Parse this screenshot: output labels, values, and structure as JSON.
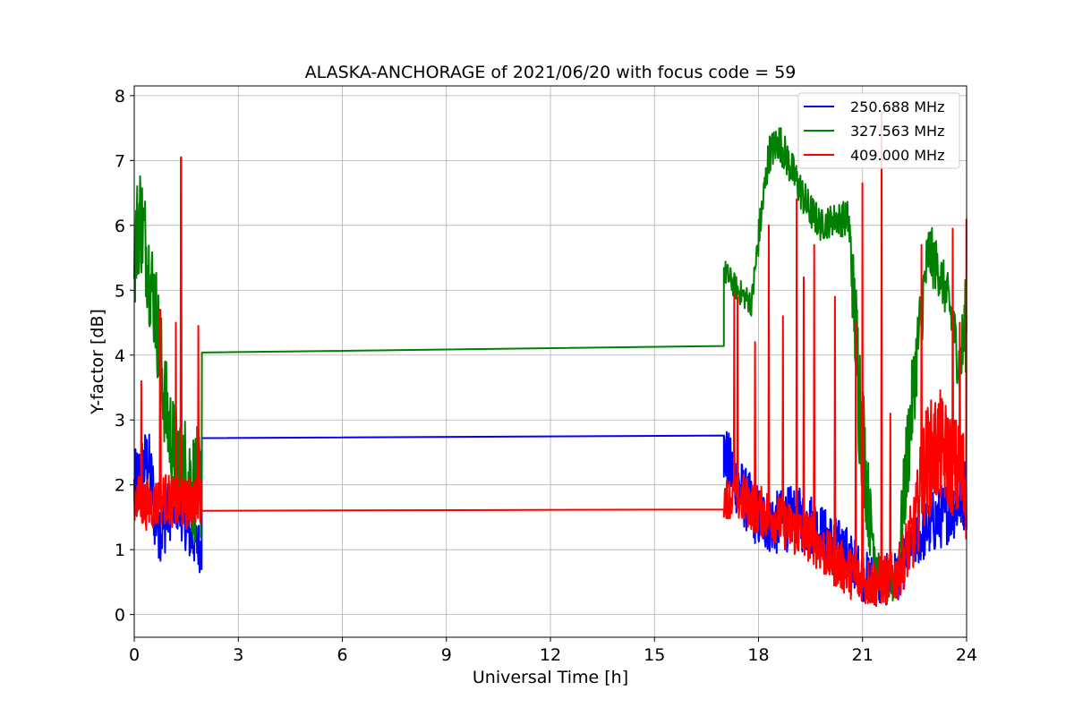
{
  "chart_data": {
    "type": "line",
    "title": "ALASKA-ANCHORAGE of 2021/06/20 with focus code = 59",
    "xlabel": "Universal Time [h]",
    "ylabel": "Y-factor [dB]",
    "xlim": [
      0,
      24
    ],
    "ylim": [
      -0.35,
      8.15
    ],
    "xticks": [
      0,
      3,
      6,
      9,
      12,
      15,
      18,
      21,
      24
    ],
    "yticks": [
      0,
      1,
      2,
      3,
      4,
      5,
      6,
      7,
      8
    ],
    "grid": true,
    "legend_position": "top-right",
    "series": [
      {
        "name": "250.688 MHz",
        "color": "#0000ff",
        "segments": [
          {
            "x": [
              0,
              0.2,
              0.4,
              0.6,
              0.8,
              1.0,
              1.2,
              1.4,
              1.6,
              1.8,
              1.95
            ],
            "center": [
              1.9,
              2.2,
              2.4,
              1.6,
              1.3,
              1.6,
              1.7,
              1.5,
              1.2,
              1.1,
              1.0
            ],
            "amp": [
              0.6,
              0.6,
              0.5,
              0.7,
              0.5,
              0.5,
              0.4,
              0.4,
              0.4,
              0.4,
              0.4
            ]
          },
          {
            "x": [
              1.95,
              17.0
            ],
            "y": [
              2.72,
              2.76
            ]
          },
          {
            "x": [
              17.0,
              17.3,
              17.6,
              18.0,
              18.5,
              19.0,
              19.5,
              20.0,
              20.5,
              21.0,
              21.5,
              22.0,
              22.5,
              23.0,
              23.5,
              24.0
            ],
            "center": [
              2.5,
              2.1,
              1.8,
              1.5,
              1.4,
              1.5,
              1.4,
              1.2,
              1.0,
              0.6,
              0.5,
              0.6,
              1.1,
              1.4,
              1.6,
              1.9
            ],
            "amp": [
              0.5,
              0.5,
              0.5,
              0.5,
              0.5,
              0.5,
              0.5,
              0.4,
              0.4,
              0.4,
              0.4,
              0.4,
              0.4,
              0.5,
              0.5,
              0.6
            ]
          }
        ]
      },
      {
        "name": "327.563 MHz",
        "color": "#008000",
        "segments": [
          {
            "x": [
              0,
              0.15,
              0.3,
              0.45,
              0.6,
              0.75,
              0.9,
              1.1,
              1.3,
              1.5,
              1.7,
              1.95
            ],
            "center": [
              5.5,
              6.2,
              5.8,
              5.2,
              4.8,
              4.0,
              3.2,
              2.6,
              2.4,
              2.2,
              2.0,
              2.0
            ],
            "amp": [
              0.9,
              0.9,
              0.8,
              0.8,
              0.8,
              0.8,
              0.8,
              0.8,
              0.8,
              0.9,
              0.9,
              0.9
            ]
          },
          {
            "x": [
              1.95,
              17.0
            ],
            "y": [
              4.04,
              4.14
            ]
          },
          {
            "x": [
              17.0,
              17.4,
              17.8,
              18.0,
              18.3,
              18.6,
              19.0,
              19.4,
              19.8,
              20.2,
              20.6,
              20.9,
              21.2,
              21.5,
              21.8,
              22.0,
              22.3,
              22.6,
              22.9,
              23.2,
              23.5,
              23.8,
              24.0
            ],
            "center": [
              5.3,
              5.0,
              4.8,
              5.8,
              7.1,
              7.3,
              6.8,
              6.3,
              6.0,
              6.1,
              6.1,
              3.5,
              1.5,
              0.6,
              0.4,
              0.6,
              2.5,
              4.2,
              5.6,
              5.3,
              4.8,
              3.8,
              4.6
            ],
            "amp": [
              0.2,
              0.2,
              0.2,
              0.3,
              0.3,
              0.3,
              0.3,
              0.3,
              0.25,
              0.25,
              0.3,
              1.2,
              0.6,
              0.3,
              0.3,
              0.4,
              0.8,
              0.6,
              0.5,
              0.4,
              0.4,
              0.5,
              0.8
            ]
          }
        ]
      },
      {
        "name": "409.000 MHz",
        "color": "#ff0000",
        "segments": [
          {
            "x": [
              0,
              0.3,
              0.6,
              0.9,
              1.2,
              1.5,
              1.8,
              1.95
            ],
            "center": [
              1.8,
              1.7,
              1.7,
              1.8,
              1.7,
              1.7,
              1.8,
              1.7
            ],
            "amp": [
              0.4,
              0.4,
              0.4,
              0.4,
              0.4,
              0.4,
              0.4,
              0.4
            ],
            "spikes": [
              {
                "x": 0.2,
                "y": 3.6
              },
              {
                "x": 0.75,
                "y": 4.7
              },
              {
                "x": 1.2,
                "y": 4.5
              },
              {
                "x": 1.35,
                "y": 7.05
              },
              {
                "x": 1.85,
                "y": 4.45
              }
            ]
          },
          {
            "x": [
              1.95,
              17.0
            ],
            "y": [
              1.6,
              1.62
            ]
          },
          {
            "x": [
              17.0,
              17.5,
              18.0,
              18.5,
              19.0,
              19.5,
              20.0,
              20.5,
              21.0,
              21.5,
              22.0,
              22.5,
              22.8,
              23.2,
              23.6,
              24.0
            ],
            "center": [
              1.8,
              1.8,
              1.6,
              1.5,
              1.3,
              1.2,
              0.9,
              0.7,
              0.5,
              0.5,
              0.6,
              1.3,
              2.3,
              2.6,
              2.3,
              2.0
            ],
            "amp": [
              0.3,
              0.4,
              0.4,
              0.4,
              0.4,
              0.4,
              0.4,
              0.4,
              0.4,
              0.4,
              0.4,
              0.6,
              0.9,
              0.9,
              0.8,
              0.9
            ],
            "spikes": [
              {
                "x": 17.3,
                "y": 4.95
              },
              {
                "x": 17.4,
                "y": 4.9
              },
              {
                "x": 17.9,
                "y": 4.2
              },
              {
                "x": 18.3,
                "y": 6.0
              },
              {
                "x": 18.7,
                "y": 4.6
              },
              {
                "x": 19.1,
                "y": 6.4
              },
              {
                "x": 19.3,
                "y": 5.2
              },
              {
                "x": 19.6,
                "y": 5.7
              },
              {
                "x": 20.2,
                "y": 4.9
              },
              {
                "x": 20.8,
                "y": 4.5
              },
              {
                "x": 21.0,
                "y": 6.65
              },
              {
                "x": 21.55,
                "y": 7.75
              },
              {
                "x": 21.8,
                "y": 3.1
              },
              {
                "x": 22.7,
                "y": 5.7
              },
              {
                "x": 23.6,
                "y": 5.95
              },
              {
                "x": 23.8,
                "y": 4.5
              },
              {
                "x": 24.0,
                "y": 6.1
              }
            ]
          }
        ]
      }
    ]
  }
}
